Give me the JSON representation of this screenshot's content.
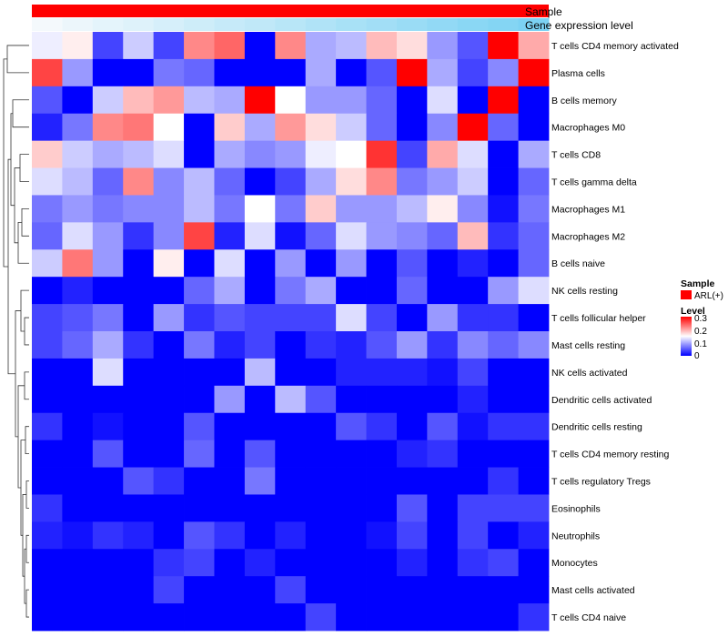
{
  "chart_data": {
    "type": "heatmap",
    "title": "",
    "xlabel": "",
    "ylabel": "",
    "annotations": [
      {
        "name": "Sample",
        "color": "#ff0000"
      },
      {
        "name": "Gene expression level",
        "gradient": [
          "#f4f9fc",
          "#56c6f0"
        ]
      }
    ],
    "rows": [
      "T cells CD4 memory activated",
      "Plasma cells",
      "B cells memory",
      "Macrophages M0",
      "T cells CD8",
      "T cells gamma delta",
      "Macrophages M1",
      "Macrophages M2",
      "B cells naive",
      "NK cells resting",
      "T cells follicular helper",
      "Mast cells resting",
      "NK cells activated",
      "Dendritic cells activated",
      "Dendritic cells resting",
      "T cells CD4 memory resting",
      "T cells regulatory  Tregs",
      "Eosinophils",
      "Neutrophils",
      "Monocytes",
      "Mast cells activated",
      "T cells CD4 naive"
    ],
    "values": [
      [
        0.14,
        0.16,
        0.04,
        0.12,
        0.04,
        0.22,
        0.24,
        0.0,
        0.22,
        0.1,
        0.11,
        0.19,
        0.17,
        0.09,
        0.05,
        0.3,
        0.2
      ],
      [
        0.26,
        0.09,
        0.0,
        0.0,
        0.07,
        0.06,
        0.0,
        0.0,
        0.0,
        0.1,
        0.0,
        0.05,
        0.3,
        0.1,
        0.04,
        0.08,
        0.3
      ],
      [
        0.05,
        0.0,
        0.12,
        0.19,
        0.21,
        0.11,
        0.1,
        0.3,
        0.15,
        0.09,
        0.09,
        0.06,
        0.0,
        0.13,
        0.0,
        0.3,
        0.0
      ],
      [
        0.02,
        0.07,
        0.22,
        0.23,
        0.15,
        0.0,
        0.18,
        0.1,
        0.21,
        0.17,
        0.12,
        0.06,
        0.0,
        0.08,
        0.3,
        0.06,
        0.0
      ],
      [
        0.18,
        0.12,
        0.1,
        0.11,
        0.13,
        0.0,
        0.1,
        0.08,
        0.09,
        0.14,
        0.15,
        0.27,
        0.04,
        0.2,
        0.13,
        0.0,
        0.1
      ],
      [
        0.13,
        0.11,
        0.06,
        0.22,
        0.08,
        0.11,
        0.06,
        0.0,
        0.04,
        0.1,
        0.17,
        0.22,
        0.07,
        0.09,
        0.12,
        0.0,
        0.06
      ],
      [
        0.07,
        0.09,
        0.07,
        0.08,
        0.08,
        0.11,
        0.07,
        0.15,
        0.07,
        0.18,
        0.09,
        0.09,
        0.11,
        0.16,
        0.08,
        0.01,
        0.07
      ],
      [
        0.06,
        0.13,
        0.09,
        0.03,
        0.08,
        0.26,
        0.02,
        0.13,
        0.01,
        0.06,
        0.13,
        0.09,
        0.08,
        0.06,
        0.19,
        0.03,
        0.06
      ],
      [
        0.12,
        0.23,
        0.09,
        0.0,
        0.16,
        0.0,
        0.13,
        0.0,
        0.09,
        0.0,
        0.09,
        0.0,
        0.05,
        0.0,
        0.02,
        0.0,
        0.06
      ],
      [
        0.0,
        0.02,
        0.0,
        0.0,
        0.0,
        0.06,
        0.1,
        0.0,
        0.07,
        0.1,
        0.0,
        0.0,
        0.06,
        0.0,
        0.0,
        0.09,
        0.13
      ],
      [
        0.04,
        0.05,
        0.07,
        0.0,
        0.09,
        0.03,
        0.05,
        0.04,
        0.04,
        0.04,
        0.13,
        0.04,
        0.0,
        0.09,
        0.03,
        0.03,
        0.0
      ],
      [
        0.04,
        0.06,
        0.1,
        0.03,
        0.0,
        0.07,
        0.02,
        0.04,
        0.0,
        0.03,
        0.02,
        0.05,
        0.09,
        0.03,
        0.08,
        0.06,
        0.08
      ],
      [
        0.0,
        0.0,
        0.13,
        0.0,
        0.0,
        0.0,
        0.0,
        0.11,
        0.0,
        0.0,
        0.02,
        0.02,
        0.02,
        0.01,
        0.04,
        0.0,
        0.0
      ],
      [
        0.0,
        0.0,
        0.0,
        0.0,
        0.0,
        0.0,
        0.09,
        0.0,
        0.11,
        0.05,
        0.0,
        0.0,
        0.0,
        0.0,
        0.02,
        0.0,
        0.0
      ],
      [
        0.03,
        0.0,
        0.01,
        0.0,
        0.0,
        0.05,
        0.0,
        0.0,
        0.0,
        0.0,
        0.05,
        0.03,
        0.0,
        0.05,
        0.01,
        0.03,
        0.03
      ],
      [
        0.0,
        0.0,
        0.05,
        0.0,
        0.0,
        0.06,
        0.0,
        0.05,
        0.0,
        0.0,
        0.0,
        0.0,
        0.02,
        0.03,
        0.0,
        0.0,
        0.0
      ],
      [
        0.0,
        0.0,
        0.0,
        0.05,
        0.03,
        0.0,
        0.0,
        0.07,
        0.0,
        0.0,
        0.0,
        0.0,
        0.0,
        0.0,
        0.0,
        0.03,
        0.0
      ],
      [
        0.03,
        0.0,
        0.0,
        0.0,
        0.0,
        0.0,
        0.0,
        0.0,
        0.0,
        0.0,
        0.0,
        0.0,
        0.05,
        0.0,
        0.04,
        0.04,
        0.04
      ],
      [
        0.02,
        0.01,
        0.03,
        0.02,
        0.0,
        0.05,
        0.03,
        0.0,
        0.02,
        0.0,
        0.0,
        0.01,
        0.04,
        0.0,
        0.04,
        0.0,
        0.02
      ],
      [
        0.0,
        0.0,
        0.0,
        0.0,
        0.03,
        0.04,
        0.0,
        0.02,
        0.0,
        0.0,
        0.0,
        0.0,
        0.02,
        0.0,
        0.03,
        0.04,
        0.0
      ],
      [
        0.0,
        0.0,
        0.0,
        0.0,
        0.04,
        0.0,
        0.0,
        0.0,
        0.04,
        0.0,
        0.0,
        0.0,
        0.0,
        0.0,
        0.0,
        0.0,
        0.0
      ],
      [
        0.0,
        0.0,
        0.0,
        0.0,
        0.0,
        0.0,
        0.0,
        0.0,
        0.0,
        0.04,
        0.0,
        0.0,
        0.0,
        0.0,
        0.0,
        0.0,
        0.03
      ]
    ],
    "color_scale": {
      "min": 0,
      "max": 0.3,
      "low": "#0000ff",
      "mid": "#ffffff",
      "high": "#ff0000",
      "mid_value": 0.15
    },
    "column_annotation_values": [
      0.0,
      0.05,
      0.1,
      0.14,
      0.19,
      0.24,
      0.29,
      0.33,
      0.38,
      0.43,
      0.48,
      0.52,
      0.57,
      0.62,
      0.67,
      0.71,
      0.76
    ],
    "legend": {
      "placement": "right",
      "sample_title": "Sample",
      "sample_entry": "ARL(+)",
      "level_title": "Level",
      "level_ticks": [
        "0.3",
        "0.2",
        "0.1",
        "0"
      ]
    },
    "row_dendrogram": true,
    "grid": false
  }
}
